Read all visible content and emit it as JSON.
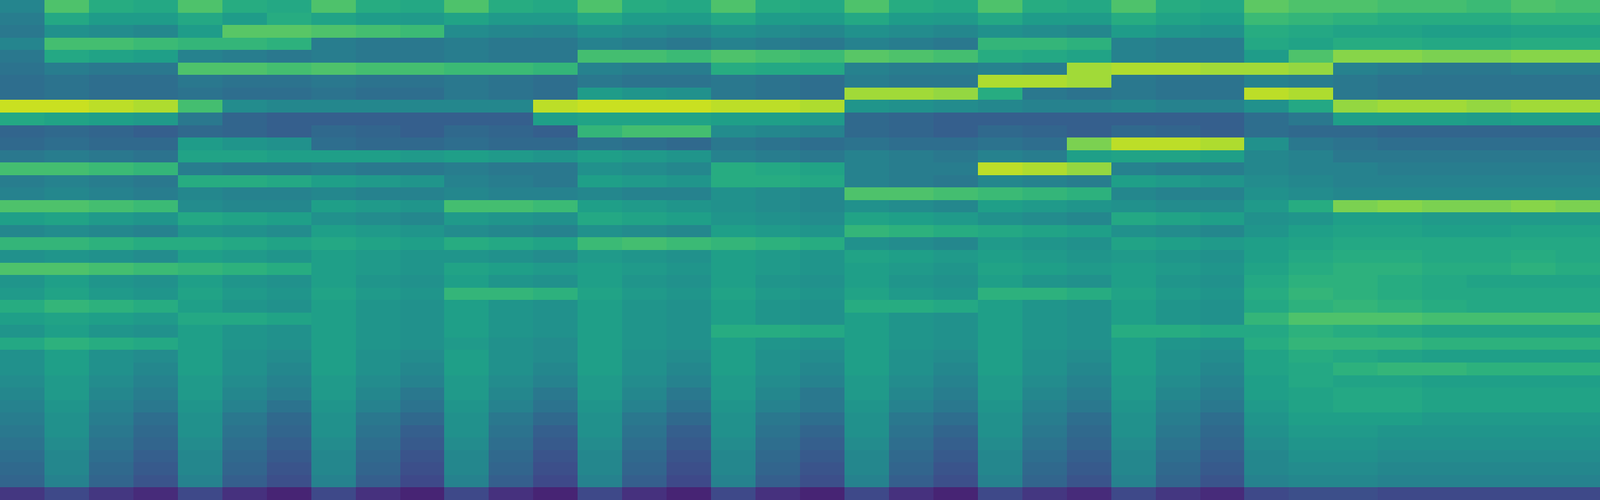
{
  "chart_data": {
    "type": "heatmap",
    "color": "Viridis",
    "tick_labels": false,
    "grid": false,
    "xlim": [
      -0.5,
      35.5
    ],
    "ylim": [
      -0.5,
      39.5
    ],
    "zlim": [
      0,
      100
    ],
    "x": [
      0,
      1,
      2,
      3,
      4,
      5,
      6,
      7,
      8,
      9,
      10,
      11,
      12,
      13,
      14,
      15,
      16,
      17,
      18,
      19,
      20,
      21,
      22,
      23,
      24,
      25,
      26,
      27,
      28,
      29,
      30,
      31,
      32,
      33,
      34,
      35
    ],
    "y": [
      39,
      38,
      37,
      36,
      35,
      34,
      33,
      32,
      31,
      30,
      29,
      28,
      27,
      26,
      25,
      24,
      23,
      22,
      21,
      20,
      19,
      18,
      17,
      16,
      15,
      14,
      13,
      12,
      11,
      10,
      9,
      8,
      7,
      6,
      5,
      4,
      3,
      2,
      1,
      0
    ],
    "cells": [
      [
        45,
        72,
        62,
        60,
        72,
        62,
        60,
        72,
        62,
        60,
        72,
        62,
        60,
        72,
        62,
        60,
        72,
        62,
        60,
        72,
        62,
        60,
        72,
        62,
        60,
        72,
        62,
        60,
        75,
        72,
        72,
        70,
        70,
        68,
        72,
        70
      ],
      [
        42,
        60,
        55,
        55,
        60,
        55,
        62,
        58,
        55,
        54,
        58,
        54,
        54,
        60,
        55,
        55,
        60,
        55,
        55,
        60,
        55,
        54,
        60,
        55,
        55,
        62,
        58,
        56,
        68,
        66,
        64,
        62,
        62,
        62,
        64,
        64
      ],
      [
        40,
        50,
        48,
        46,
        55,
        74,
        74,
        72,
        70,
        68,
        48,
        46,
        45,
        50,
        48,
        46,
        50,
        48,
        46,
        50,
        48,
        46,
        50,
        48,
        46,
        55,
        52,
        50,
        62,
        60,
        58,
        58,
        56,
        56,
        58,
        58
      ],
      [
        45,
        70,
        70,
        68,
        66,
        66,
        64,
        42,
        40,
        40,
        42,
        40,
        40,
        44,
        42,
        40,
        44,
        42,
        40,
        44,
        42,
        40,
        66,
        66,
        64,
        44,
        42,
        42,
        60,
        58,
        62,
        62,
        60,
        60,
        62,
        62
      ],
      [
        40,
        60,
        58,
        56,
        44,
        42,
        40,
        42,
        40,
        40,
        42,
        40,
        40,
        70,
        70,
        68,
        72,
        70,
        68,
        74,
        72,
        70,
        62,
        60,
        58,
        44,
        42,
        42,
        55,
        72,
        82,
        82,
        80,
        80,
        82,
        82
      ],
      [
        38,
        42,
        40,
        40,
        72,
        72,
        70,
        72,
        70,
        70,
        68,
        68,
        66,
        44,
        42,
        42,
        62,
        60,
        60,
        44,
        42,
        42,
        44,
        42,
        86,
        88,
        88,
        86,
        86,
        84,
        44,
        42,
        40,
        40,
        42,
        42
      ],
      [
        36,
        38,
        36,
        36,
        40,
        38,
        38,
        40,
        38,
        38,
        40,
        38,
        36,
        40,
        38,
        38,
        40,
        38,
        36,
        42,
        40,
        40,
        88,
        88,
        86,
        40,
        38,
        38,
        44,
        42,
        40,
        38,
        38,
        38,
        38,
        38
      ],
      [
        36,
        38,
        36,
        36,
        38,
        36,
        36,
        38,
        36,
        36,
        40,
        38,
        36,
        55,
        52,
        50,
        40,
        38,
        36,
        86,
        86,
        84,
        62,
        40,
        38,
        40,
        38,
        38,
        90,
        88,
        40,
        38,
        38,
        38,
        38,
        38
      ],
      [
        92,
        92,
        90,
        88,
        70,
        48,
        46,
        46,
        46,
        46,
        46,
        46,
        90,
        92,
        92,
        92,
        90,
        90,
        88,
        52,
        50,
        48,
        46,
        44,
        44,
        46,
        44,
        44,
        50,
        60,
        84,
        86,
        86,
        84,
        86,
        86
      ],
      [
        60,
        58,
        56,
        54,
        40,
        32,
        30,
        30,
        30,
        30,
        30,
        30,
        56,
        58,
        58,
        58,
        56,
        56,
        54,
        34,
        32,
        30,
        30,
        30,
        30,
        30,
        30,
        30,
        36,
        40,
        56,
        56,
        56,
        55,
        56,
        56
      ],
      [
        32,
        34,
        32,
        30,
        34,
        32,
        30,
        34,
        32,
        30,
        34,
        32,
        30,
        66,
        70,
        70,
        48,
        46,
        44,
        34,
        32,
        30,
        34,
        32,
        30,
        34,
        32,
        30,
        36,
        34,
        34,
        32,
        32,
        32,
        32,
        32
      ],
      [
        34,
        36,
        34,
        34,
        55,
        52,
        50,
        36,
        34,
        34,
        36,
        34,
        34,
        38,
        36,
        34,
        40,
        38,
        36,
        38,
        36,
        36,
        38,
        36,
        80,
        90,
        90,
        88,
        50,
        40,
        38,
        36,
        36,
        36,
        36,
        36
      ],
      [
        40,
        42,
        40,
        38,
        58,
        58,
        56,
        56,
        56,
        54,
        56,
        54,
        52,
        56,
        54,
        52,
        44,
        42,
        40,
        44,
        42,
        40,
        44,
        42,
        56,
        58,
        58,
        56,
        46,
        44,
        40,
        40,
        40,
        40,
        40,
        40
      ],
      [
        70,
        70,
        68,
        66,
        42,
        40,
        40,
        42,
        40,
        40,
        42,
        40,
        40,
        50,
        48,
        46,
        62,
        60,
        58,
        44,
        42,
        42,
        90,
        88,
        84,
        44,
        42,
        42,
        46,
        44,
        44,
        42,
        42,
        42,
        42,
        42
      ],
      [
        42,
        44,
        42,
        40,
        62,
        62,
        60,
        56,
        54,
        52,
        44,
        42,
        40,
        56,
        54,
        52,
        62,
        62,
        60,
        44,
        42,
        40,
        46,
        44,
        42,
        56,
        54,
        52,
        48,
        46,
        44,
        44,
        44,
        44,
        44,
        44
      ],
      [
        44,
        46,
        44,
        42,
        46,
        44,
        44,
        46,
        44,
        44,
        46,
        44,
        44,
        46,
        44,
        44,
        50,
        48,
        46,
        72,
        72,
        70,
        68,
        66,
        64,
        46,
        44,
        44,
        50,
        48,
        46,
        46,
        46,
        46,
        46,
        46
      ],
      [
        72,
        72,
        70,
        68,
        48,
        46,
        46,
        56,
        54,
        52,
        70,
        70,
        68,
        56,
        54,
        52,
        50,
        48,
        46,
        50,
        48,
        46,
        56,
        54,
        52,
        50,
        48,
        48,
        54,
        62,
        80,
        82,
        80,
        80,
        82,
        80
      ],
      [
        56,
        58,
        54,
        52,
        60,
        58,
        56,
        50,
        48,
        46,
        54,
        52,
        50,
        60,
        58,
        56,
        52,
        50,
        48,
        58,
        56,
        54,
        50,
        48,
        46,
        60,
        58,
        56,
        50,
        52,
        56,
        56,
        54,
        54,
        54,
        54
      ],
      [
        46,
        48,
        46,
        44,
        52,
        50,
        48,
        56,
        54,
        52,
        48,
        46,
        44,
        50,
        48,
        46,
        56,
        54,
        52,
        66,
        64,
        62,
        60,
        58,
        56,
        50,
        48,
        46,
        52,
        56,
        58,
        58,
        56,
        56,
        58,
        58
      ],
      [
        66,
        66,
        64,
        62,
        62,
        60,
        58,
        60,
        58,
        56,
        62,
        60,
        58,
        68,
        70,
        68,
        66,
        64,
        62,
        50,
        48,
        46,
        54,
        52,
        50,
        58,
        56,
        54,
        56,
        58,
        60,
        60,
        60,
        60,
        60,
        60
      ],
      [
        50,
        52,
        50,
        48,
        56,
        54,
        52,
        56,
        54,
        52,
        52,
        50,
        48,
        54,
        52,
        50,
        56,
        54,
        52,
        58,
        56,
        54,
        56,
        54,
        52,
        54,
        52,
        50,
        56,
        60,
        62,
        62,
        60,
        60,
        62,
        60
      ],
      [
        72,
        72,
        70,
        68,
        66,
        64,
        62,
        56,
        54,
        52,
        58,
        56,
        54,
        56,
        54,
        52,
        56,
        54,
        52,
        56,
        54,
        52,
        58,
        56,
        54,
        56,
        54,
        52,
        58,
        62,
        64,
        64,
        62,
        62,
        64,
        62
      ],
      [
        52,
        56,
        52,
        50,
        56,
        52,
        50,
        56,
        52,
        50,
        56,
        52,
        50,
        56,
        52,
        50,
        56,
        52,
        50,
        56,
        52,
        50,
        56,
        52,
        50,
        56,
        52,
        50,
        60,
        64,
        64,
        62,
        60,
        58,
        58,
        58
      ],
      [
        54,
        58,
        54,
        52,
        58,
        54,
        52,
        58,
        54,
        52,
        66,
        66,
        64,
        58,
        54,
        52,
        58,
        54,
        52,
        58,
        54,
        52,
        64,
        64,
        62,
        58,
        54,
        52,
        62,
        66,
        64,
        62,
        60,
        60,
        60,
        60
      ],
      [
        62,
        66,
        64,
        62,
        56,
        52,
        50,
        56,
        52,
        50,
        56,
        52,
        50,
        56,
        52,
        50,
        56,
        52,
        50,
        62,
        62,
        60,
        56,
        52,
        50,
        56,
        52,
        50,
        60,
        64,
        66,
        64,
        62,
        60,
        60,
        60
      ],
      [
        56,
        58,
        56,
        54,
        60,
        60,
        58,
        56,
        52,
        50,
        56,
        52,
        50,
        56,
        52,
        50,
        56,
        52,
        50,
        56,
        52,
        50,
        56,
        52,
        50,
        56,
        52,
        50,
        66,
        72,
        72,
        72,
        70,
        70,
        70,
        70
      ],
      [
        52,
        56,
        52,
        50,
        56,
        52,
        50,
        56,
        52,
        50,
        56,
        52,
        50,
        56,
        52,
        50,
        62,
        62,
        60,
        56,
        52,
        50,
        56,
        52,
        50,
        62,
        62,
        60,
        60,
        64,
        62,
        60,
        58,
        58,
        58,
        58
      ],
      [
        60,
        64,
        62,
        60,
        56,
        52,
        50,
        56,
        52,
        50,
        54,
        50,
        48,
        56,
        52,
        50,
        56,
        52,
        50,
        56,
        52,
        50,
        56,
        52,
        50,
        56,
        52,
        50,
        62,
        66,
        66,
        66,
        64,
        64,
        64,
        64
      ],
      [
        50,
        56,
        50,
        48,
        56,
        50,
        48,
        56,
        50,
        48,
        56,
        50,
        48,
        56,
        50,
        48,
        56,
        50,
        48,
        56,
        50,
        48,
        56,
        50,
        48,
        56,
        50,
        48,
        58,
        62,
        60,
        58,
        56,
        56,
        56,
        56
      ],
      [
        50,
        56,
        50,
        46,
        56,
        50,
        46,
        56,
        50,
        46,
        56,
        50,
        46,
        56,
        50,
        46,
        56,
        50,
        46,
        56,
        50,
        46,
        56,
        50,
        46,
        56,
        50,
        46,
        58,
        60,
        64,
        66,
        66,
        64,
        64,
        64
      ],
      [
        48,
        54,
        48,
        44,
        54,
        48,
        44,
        54,
        48,
        44,
        54,
        48,
        44,
        54,
        48,
        44,
        54,
        48,
        44,
        54,
        48,
        44,
        54,
        48,
        44,
        54,
        48,
        44,
        56,
        60,
        58,
        58,
        56,
        56,
        56,
        56
      ],
      [
        46,
        54,
        46,
        42,
        54,
        46,
        42,
        54,
        46,
        40,
        54,
        46,
        40,
        54,
        46,
        40,
        54,
        46,
        40,
        54,
        46,
        42,
        54,
        46,
        42,
        54,
        46,
        42,
        56,
        58,
        60,
        60,
        58,
        58,
        58,
        58
      ],
      [
        44,
        52,
        44,
        40,
        52,
        44,
        38,
        52,
        44,
        38,
        52,
        44,
        38,
        52,
        44,
        38,
        52,
        44,
        40,
        52,
        44,
        40,
        52,
        44,
        40,
        52,
        44,
        40,
        54,
        58,
        60,
        60,
        58,
        58,
        58,
        58
      ],
      [
        42,
        50,
        42,
        36,
        50,
        40,
        34,
        50,
        40,
        34,
        50,
        40,
        34,
        50,
        40,
        34,
        50,
        40,
        36,
        50,
        40,
        36,
        50,
        42,
        36,
        50,
        42,
        36,
        52,
        56,
        56,
        56,
        54,
        54,
        54,
        54
      ],
      [
        40,
        50,
        40,
        34,
        50,
        38,
        32,
        50,
        38,
        30,
        50,
        38,
        30,
        50,
        38,
        30,
        50,
        38,
        32,
        50,
        38,
        32,
        50,
        40,
        34,
        50,
        40,
        34,
        50,
        54,
        54,
        52,
        52,
        52,
        52,
        52
      ],
      [
        38,
        48,
        38,
        32,
        48,
        36,
        30,
        48,
        36,
        28,
        48,
        36,
        28,
        48,
        36,
        28,
        48,
        36,
        30,
        48,
        36,
        30,
        48,
        38,
        32,
        48,
        38,
        32,
        48,
        52,
        52,
        50,
        50,
        50,
        50,
        50
      ],
      [
        36,
        46,
        36,
        30,
        46,
        34,
        28,
        46,
        34,
        26,
        46,
        34,
        26,
        46,
        34,
        26,
        46,
        34,
        28,
        46,
        34,
        28,
        46,
        36,
        30,
        46,
        36,
        30,
        46,
        50,
        50,
        48,
        48,
        48,
        48,
        48
      ],
      [
        34,
        46,
        34,
        28,
        46,
        32,
        26,
        46,
        32,
        24,
        46,
        32,
        24,
        46,
        32,
        24,
        46,
        32,
        26,
        46,
        32,
        26,
        46,
        34,
        28,
        46,
        34,
        28,
        46,
        48,
        48,
        46,
        46,
        46,
        46,
        46
      ],
      [
        32,
        44,
        32,
        26,
        44,
        30,
        24,
        44,
        30,
        22,
        44,
        30,
        22,
        44,
        30,
        22,
        44,
        30,
        24,
        44,
        30,
        24,
        44,
        32,
        26,
        44,
        32,
        26,
        44,
        46,
        46,
        44,
        44,
        44,
        44,
        44
      ],
      [
        16,
        22,
        16,
        12,
        22,
        14,
        10,
        22,
        14,
        10,
        22,
        14,
        10,
        22,
        14,
        10,
        22,
        14,
        10,
        22,
        14,
        10,
        22,
        16,
        12,
        22,
        16,
        12,
        22,
        24,
        24,
        22,
        22,
        22,
        22,
        22
      ]
    ]
  }
}
